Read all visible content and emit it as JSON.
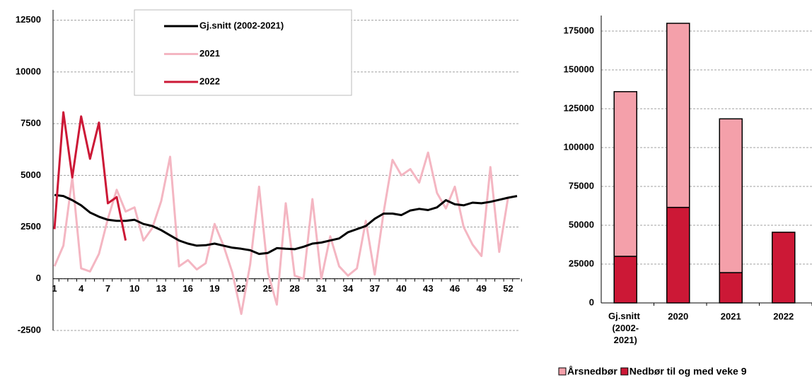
{
  "chart_data": [
    {
      "type": "line",
      "x": [
        1,
        2,
        3,
        4,
        5,
        6,
        7,
        8,
        9,
        10,
        11,
        12,
        13,
        14,
        15,
        16,
        17,
        18,
        19,
        20,
        21,
        22,
        23,
        24,
        25,
        26,
        27,
        28,
        29,
        30,
        31,
        32,
        33,
        34,
        35,
        36,
        37,
        38,
        39,
        40,
        41,
        42,
        43,
        44,
        45,
        46,
        47,
        48,
        49,
        50,
        51,
        52,
        53
      ],
      "xlim": [
        1,
        53
      ],
      "xticks": [
        1,
        4,
        7,
        10,
        13,
        16,
        19,
        22,
        25,
        28,
        31,
        34,
        37,
        40,
        43,
        46,
        49,
        52
      ],
      "ylim": [
        -2500,
        13000
      ],
      "yticks": [
        -2500,
        0,
        2500,
        5000,
        7500,
        10000,
        12500
      ],
      "grid": true,
      "legend": "top-center",
      "series": [
        {
          "name": "Gj.snitt (2002-2021)",
          "color": "#000000",
          "values": [
            4050,
            4000,
            3800,
            3550,
            3200,
            3000,
            2850,
            2800,
            2800,
            2850,
            2650,
            2550,
            2350,
            2100,
            1850,
            1700,
            1600,
            1620,
            1700,
            1600,
            1500,
            1450,
            1380,
            1200,
            1250,
            1480,
            1450,
            1430,
            1550,
            1700,
            1750,
            1850,
            1950,
            2250,
            2400,
            2550,
            2900,
            3150,
            3150,
            3080,
            3300,
            3380,
            3320,
            3450,
            3800,
            3600,
            3550,
            3680,
            3650,
            3720,
            3820,
            3920,
            4000
          ]
        },
        {
          "name": "2021",
          "color": "#f4b6c2",
          "values": [
            600,
            1600,
            4900,
            500,
            350,
            1200,
            2900,
            4300,
            3250,
            3450,
            1850,
            2450,
            3750,
            5900,
            600,
            900,
            450,
            750,
            2650,
            1600,
            300,
            -1700,
            700,
            4450,
            300,
            -1250,
            3650,
            150,
            0,
            3850,
            0,
            2050,
            600,
            150,
            500,
            2800,
            200,
            3200,
            5750,
            5000,
            5300,
            4650,
            6100,
            4150,
            3400,
            4450,
            2500,
            1650,
            1100,
            5400,
            1300,
            3950,
            null
          ]
        },
        {
          "name": "2022",
          "color": "#cc1836",
          "values": [
            2400,
            8050,
            4900,
            7850,
            5800,
            7550,
            3650,
            3950,
            1850,
            null,
            null,
            null,
            null,
            null,
            null,
            null,
            null,
            null,
            null,
            null,
            null,
            null,
            null,
            null,
            null,
            null,
            null,
            null,
            null,
            null,
            null,
            null,
            null,
            null,
            null,
            null,
            null,
            null,
            null,
            null,
            null,
            null,
            null,
            null,
            null,
            null,
            null,
            null,
            null,
            null,
            null,
            null,
            null
          ]
        }
      ]
    },
    {
      "type": "stacked-bar",
      "categories": [
        "Gj.snitt (2002-2021)",
        "2020",
        "2021",
        "2022"
      ],
      "ylim": [
        0,
        185000
      ],
      "yticks": [
        0,
        25000,
        50000,
        75000,
        100000,
        125000,
        150000,
        175000
      ],
      "grid": true,
      "legend": "bottom",
      "series": [
        {
          "name": "Årsnedbør",
          "color": "#f4a0aa",
          "values": [
            106000,
            118500,
            99000,
            null
          ]
        },
        {
          "name": "Nedbør til og med veke 9",
          "color": "#cc1836",
          "values": [
            30000,
            61500,
            19500,
            45500
          ]
        }
      ]
    }
  ]
}
